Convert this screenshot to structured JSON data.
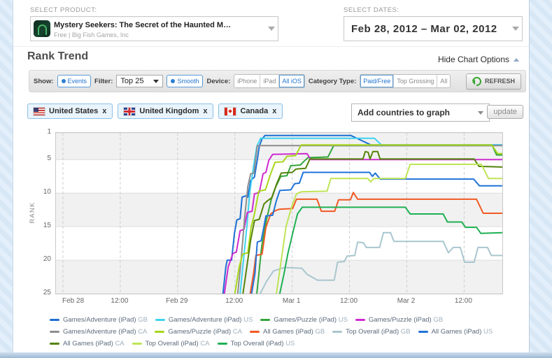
{
  "header": {
    "product_label": "SELECT PRODUCT:",
    "product_title": "Mystery Seekers: The Secret of the Haunted M…",
    "product_subtitle": "Free | Big Fish Games, Inc",
    "dates_label": "SELECT DATES:",
    "dates_value": "Feb 28, 2012 – Mar 02, 2012"
  },
  "section": {
    "title": "Rank Trend",
    "hide_options": "Hide Chart Options"
  },
  "options": {
    "show_label": "Show:",
    "events_label": "Events",
    "filter_label": "Filter:",
    "filter_value": "Top 25",
    "smooth_label": "Smooth",
    "device_label": "Device:",
    "device_options": [
      {
        "label": "iPhone",
        "active": false
      },
      {
        "label": "iPad",
        "active": false
      },
      {
        "label": "All iOS",
        "active": true
      }
    ],
    "category_label": "Category Type:",
    "category_options": [
      {
        "label": "Paid/Free",
        "active": true
      },
      {
        "label": "Top Grossing",
        "active": false
      },
      {
        "label": "All",
        "active": false
      }
    ],
    "refresh_label": "REFRESH"
  },
  "countries": {
    "tags": [
      {
        "name": "United States"
      },
      {
        "name": "United Kingdom"
      },
      {
        "name": "Canada"
      }
    ],
    "remove_symbol": "x",
    "add_placeholder": "Add countries to graph",
    "update_label": "update"
  },
  "chart_data": {
    "type": "line",
    "title": "Rank Trend",
    "ylabel": "RANK",
    "y_inverted": true,
    "ylim": [
      1,
      25
    ],
    "y_ticks": [
      1,
      5,
      10,
      15,
      20,
      25
    ],
    "x_hours_range": [
      0,
      92
    ],
    "x_ticks": [
      {
        "t": 0,
        "label": "Feb 28"
      },
      {
        "t": 12,
        "label": "12:00"
      },
      {
        "t": 24,
        "label": "Feb 29"
      },
      {
        "t": 36,
        "label": "12:00"
      },
      {
        "t": 48,
        "label": "Mar 1"
      },
      {
        "t": 60,
        "label": "12:00"
      },
      {
        "t": 72,
        "label": "Mar 2"
      },
      {
        "t": 84,
        "label": "12:00"
      }
    ],
    "grey_bands": [
      [
        1,
        5
      ],
      [
        10,
        15
      ],
      [
        20,
        25
      ]
    ],
    "series": [
      {
        "label": "Games/Adventure (iPad)",
        "country": "GB",
        "color": "#1d6fd2",
        "points": [
          [
            33.5,
            25
          ],
          [
            34.1,
            21
          ],
          [
            34.4,
            20
          ],
          [
            35.3,
            20
          ],
          [
            35.9,
            16
          ],
          [
            36.4,
            14
          ],
          [
            37.1,
            13.8
          ],
          [
            37.5,
            10.6
          ],
          [
            38.3,
            10.4
          ],
          [
            38.7,
            10.6
          ],
          [
            39.3,
            8.1
          ],
          [
            40.1,
            7.6
          ],
          [
            40.7,
            5
          ],
          [
            41.1,
            3
          ],
          [
            41.7,
            1.9
          ],
          [
            42.3,
            1.4
          ],
          [
            60.3,
            1.4
          ],
          [
            64.5,
            2.8
          ],
          [
            92,
            2.8
          ]
        ]
      },
      {
        "label": "Games/Adventure (iPad)",
        "country": "US",
        "color": "#3fd3f0",
        "points": [
          [
            37.1,
            25
          ],
          [
            37.8,
            20
          ],
          [
            38.5,
            15
          ],
          [
            39.1,
            10
          ],
          [
            39.9,
            6
          ],
          [
            40.6,
            3
          ],
          [
            41.4,
            1.8
          ],
          [
            65.2,
            1.8
          ],
          [
            66.7,
            2.8
          ],
          [
            92,
            2.8
          ]
        ]
      },
      {
        "label": "Games/Puzzle (iPad)",
        "country": "US",
        "color": "#34a53c",
        "points": [
          [
            40.6,
            25
          ],
          [
            41.6,
            18
          ],
          [
            42.6,
            14
          ],
          [
            43.6,
            11
          ],
          [
            44.6,
            9
          ],
          [
            45.6,
            7.5
          ],
          [
            46.9,
            7.4
          ],
          [
            47.7,
            5.9
          ],
          [
            49.7,
            5.8
          ],
          [
            50.4,
            5.3
          ],
          [
            51.3,
            4.7
          ],
          [
            55.5,
            4.6
          ],
          [
            56.7,
            2.9
          ],
          [
            89.9,
            2.9
          ],
          [
            90.8,
            4.3
          ],
          [
            92,
            4.3
          ]
        ]
      },
      {
        "label": "Games/Puzzle (iPad)",
        "country": "GB",
        "color": "#cd2bd0",
        "points": [
          [
            33.8,
            25
          ],
          [
            34.6,
            21
          ],
          [
            35.6,
            19
          ],
          [
            36.3,
            18.8
          ],
          [
            37.1,
            15.6
          ],
          [
            37.9,
            15.4
          ],
          [
            38.6,
            12.9
          ],
          [
            39.6,
            12.7
          ],
          [
            40.1,
            10.1
          ],
          [
            41.1,
            9.9
          ],
          [
            41.9,
            7.1
          ],
          [
            42.5,
            6.9
          ],
          [
            43.1,
            5.1
          ],
          [
            43.9,
            4.2
          ],
          [
            51.1,
            4.1
          ],
          [
            51.9,
            5
          ],
          [
            92,
            5
          ]
        ]
      },
      {
        "label": "Games/Adventure (iPad)",
        "country": "CA",
        "color": "#8e8e8e",
        "points": [
          [
            36.6,
            25
          ],
          [
            37.3,
            20
          ],
          [
            38,
            14
          ],
          [
            38.7,
            9
          ],
          [
            39.3,
            7.1
          ],
          [
            40,
            7
          ],
          [
            40.7,
            2.9
          ],
          [
            92,
            2.9
          ]
        ]
      },
      {
        "label": "Games/Puzzle (iPad)",
        "country": "CA",
        "color": "#a7d71b",
        "points": [
          [
            36,
            25
          ],
          [
            36.9,
            21
          ],
          [
            37.6,
            19.1
          ],
          [
            38.7,
            18.9
          ],
          [
            39.4,
            15.1
          ],
          [
            40.1,
            13.1
          ],
          [
            41,
            9.7
          ],
          [
            42.4,
            9.5
          ],
          [
            43.5,
            7.1
          ],
          [
            44.4,
            5.4
          ],
          [
            46.1,
            5.3
          ],
          [
            46.9,
            4.5
          ],
          [
            48.7,
            4.4
          ],
          [
            49.9,
            2.8
          ],
          [
            89.8,
            2.8
          ],
          [
            91,
            4.1
          ],
          [
            92,
            4.1
          ]
        ]
      },
      {
        "label": "All Games (iPad)",
        "country": "GB",
        "color": "#f15a24",
        "points": [
          [
            39.2,
            25
          ],
          [
            39.9,
            22
          ],
          [
            40.4,
            19.3
          ],
          [
            41.7,
            19.1
          ],
          [
            42.5,
            15.1
          ],
          [
            43.5,
            13.1
          ],
          [
            44.5,
            12.6
          ],
          [
            45.3,
            12.4
          ],
          [
            48.1,
            12.3
          ],
          [
            48.9,
            10.9
          ],
          [
            53.2,
            10.9
          ],
          [
            54.1,
            12.7
          ],
          [
            56.9,
            12.7
          ],
          [
            57.7,
            11
          ],
          [
            60.2,
            11
          ],
          [
            60.8,
            9.9
          ],
          [
            61.7,
            10.9
          ],
          [
            86.6,
            10.9
          ],
          [
            88,
            13
          ],
          [
            92,
            13
          ]
        ]
      },
      {
        "label": "Top Overall (iPad)",
        "country": "GB",
        "color": "#a9c6cf",
        "points": [
          [
            41.3,
            25
          ],
          [
            42.6,
            23.2
          ],
          [
            44.1,
            21.6
          ],
          [
            46.4,
            21.1
          ],
          [
            50,
            21.2
          ],
          [
            51.1,
            22.1
          ],
          [
            53.3,
            23
          ],
          [
            56.8,
            23
          ],
          [
            57.5,
            20.3
          ],
          [
            58.9,
            20.2
          ],
          [
            59.5,
            19.4
          ],
          [
            61.1,
            19.3
          ],
          [
            61.7,
            17.3
          ],
          [
            62.9,
            17.4
          ],
          [
            63.5,
            18.1
          ],
          [
            66.3,
            18.1
          ],
          [
            67.1,
            15.9
          ],
          [
            68.6,
            15.9
          ],
          [
            69.3,
            17.2
          ],
          [
            79.6,
            17.2
          ],
          [
            80.7,
            18.9
          ],
          [
            81.7,
            18.1
          ],
          [
            83.2,
            18.1
          ],
          [
            84.1,
            20.3
          ],
          [
            86.1,
            20.3
          ],
          [
            86.9,
            18.1
          ],
          [
            88.9,
            18.1
          ],
          [
            89.7,
            19.3
          ],
          [
            92,
            19.3
          ]
        ]
      },
      {
        "label": "All Games (iPad)",
        "country": "US",
        "color": "#2173d8",
        "points": [
          [
            39.5,
            25
          ],
          [
            40.2,
            22
          ],
          [
            40.7,
            17.3
          ],
          [
            41.5,
            17.1
          ],
          [
            42.1,
            14.9
          ],
          [
            42.5,
            13.4
          ],
          [
            43.9,
            13.3
          ],
          [
            44.7,
            11.1
          ],
          [
            45.4,
            9.6
          ],
          [
            47.7,
            9.5
          ],
          [
            48.5,
            8.6
          ],
          [
            49.5,
            8.5
          ],
          [
            50.3,
            6.9
          ],
          [
            64.2,
            6.9
          ],
          [
            64.8,
            7.5
          ],
          [
            65.4,
            7
          ],
          [
            66.4,
            7.9
          ],
          [
            86,
            7.9
          ],
          [
            87.2,
            8.9
          ],
          [
            92,
            8.9
          ]
        ]
      },
      {
        "label": "All Games (iPad)",
        "country": "CA",
        "color": "#55830c",
        "points": [
          [
            37.7,
            25
          ],
          [
            38.5,
            21
          ],
          [
            39.3,
            17
          ],
          [
            40.1,
            14.1
          ],
          [
            41.1,
            13.9
          ],
          [
            42.1,
            11.6
          ],
          [
            42.9,
            11.1
          ],
          [
            43.7,
            10.7
          ],
          [
            44.7,
            8.7
          ],
          [
            45.7,
            7
          ],
          [
            48,
            6.9
          ],
          [
            48.8,
            6.4
          ],
          [
            50.8,
            6.3
          ],
          [
            51.7,
            4.9
          ],
          [
            62.8,
            4.9
          ],
          [
            63.3,
            3.8
          ],
          [
            63.9,
            3.9
          ],
          [
            64.3,
            4.9
          ],
          [
            64.9,
            3.8
          ],
          [
            65.9,
            3.8
          ],
          [
            66.4,
            4.9
          ],
          [
            86.1,
            4.9
          ],
          [
            87.1,
            6
          ],
          [
            92,
            6.1
          ]
        ]
      },
      {
        "label": "Top Overall (iPad)",
        "country": "CA",
        "color": "#bfe457",
        "points": [
          [
            44.7,
            25
          ],
          [
            45.7,
            20
          ],
          [
            46.7,
            15
          ],
          [
            47.9,
            12
          ],
          [
            48.9,
            10.1
          ],
          [
            49.9,
            9.8
          ],
          [
            55.3,
            9.7
          ],
          [
            56.1,
            7.8
          ],
          [
            63.8,
            7.8
          ],
          [
            64.4,
            8.3
          ],
          [
            65.1,
            7.8
          ],
          [
            71.7,
            7.8
          ],
          [
            72.7,
            5.7
          ],
          [
            87.6,
            5.7
          ],
          [
            89.1,
            7.8
          ],
          [
            92,
            7.8
          ]
        ]
      },
      {
        "label": "Top Overall (iPad)",
        "country": "US",
        "color": "#1fb153",
        "points": [
          [
            45.4,
            25
          ],
          [
            46.3,
            22
          ],
          [
            47.1,
            19
          ],
          [
            48.1,
            16
          ],
          [
            49.1,
            13.1
          ],
          [
            50.1,
            12.1
          ],
          [
            71.7,
            12.1
          ],
          [
            72.7,
            13.1
          ],
          [
            79.6,
            13.1
          ],
          [
            80.5,
            14.3
          ],
          [
            83.5,
            14.3
          ],
          [
            84.3,
            15.1
          ],
          [
            86.6,
            15.1
          ],
          [
            87.5,
            16
          ],
          [
            92,
            15.9
          ]
        ]
      }
    ]
  },
  "legend": {
    "rows": [
      [
        0,
        1,
        2,
        3
      ],
      [
        4,
        5,
        6,
        7,
        8
      ],
      [
        9,
        10,
        11
      ]
    ]
  }
}
